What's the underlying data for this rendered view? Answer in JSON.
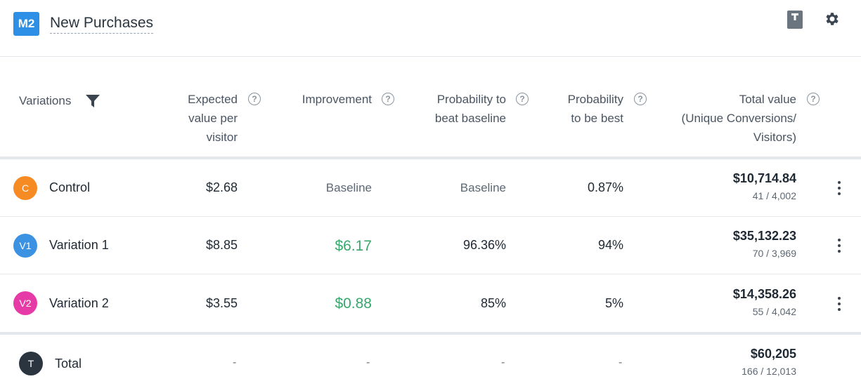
{
  "header": {
    "badge": "M2",
    "title": "New Purchases"
  },
  "colors": {
    "badge": "#2e8fe6",
    "control": "#f68a23",
    "variation1": "#3b92e3",
    "variation2": "#e63aa6",
    "total": "#2b3540",
    "positive": "#3aa76d"
  },
  "icons": [
    "book-icon",
    "gear-icon",
    "filter-icon",
    "help-icon",
    "kebab-menu-icon"
  ],
  "columns": {
    "variations": "Variations",
    "expected_line1": "Expected",
    "expected_line2": "value per",
    "expected_line3": "visitor",
    "improvement": "Improvement",
    "beat_line1": "Probability to",
    "beat_line2": "beat baseline",
    "best_line1": "Probability",
    "best_line2": "to be best",
    "total_line1": "Total value",
    "total_line2": "(Unique Conversions/",
    "total_line3": "Visitors)"
  },
  "rows": [
    {
      "avatar": "C",
      "name": "Control",
      "expected": "$2.68",
      "improvement": "Baseline",
      "beat": "Baseline",
      "best": "0.87%",
      "total": "$10,714.84",
      "ratio": "41 / 4,002"
    },
    {
      "avatar": "V1",
      "name": "Variation 1",
      "expected": "$8.85",
      "improvement": "$6.17",
      "beat": "96.36%",
      "best": "94%",
      "total": "$35,132.23",
      "ratio": "70 / 3,969"
    },
    {
      "avatar": "V2",
      "name": "Variation 2",
      "expected": "$3.55",
      "improvement": "$0.88",
      "beat": "85%",
      "best": "5%",
      "total": "$14,358.26",
      "ratio": "55 / 4,042"
    }
  ],
  "total_row": {
    "avatar": "T",
    "name": "Total",
    "expected": "-",
    "improvement": "-",
    "beat": "-",
    "best": "-",
    "total": "$60,205",
    "ratio": "166 / 12,013"
  },
  "help_glyph": "?"
}
